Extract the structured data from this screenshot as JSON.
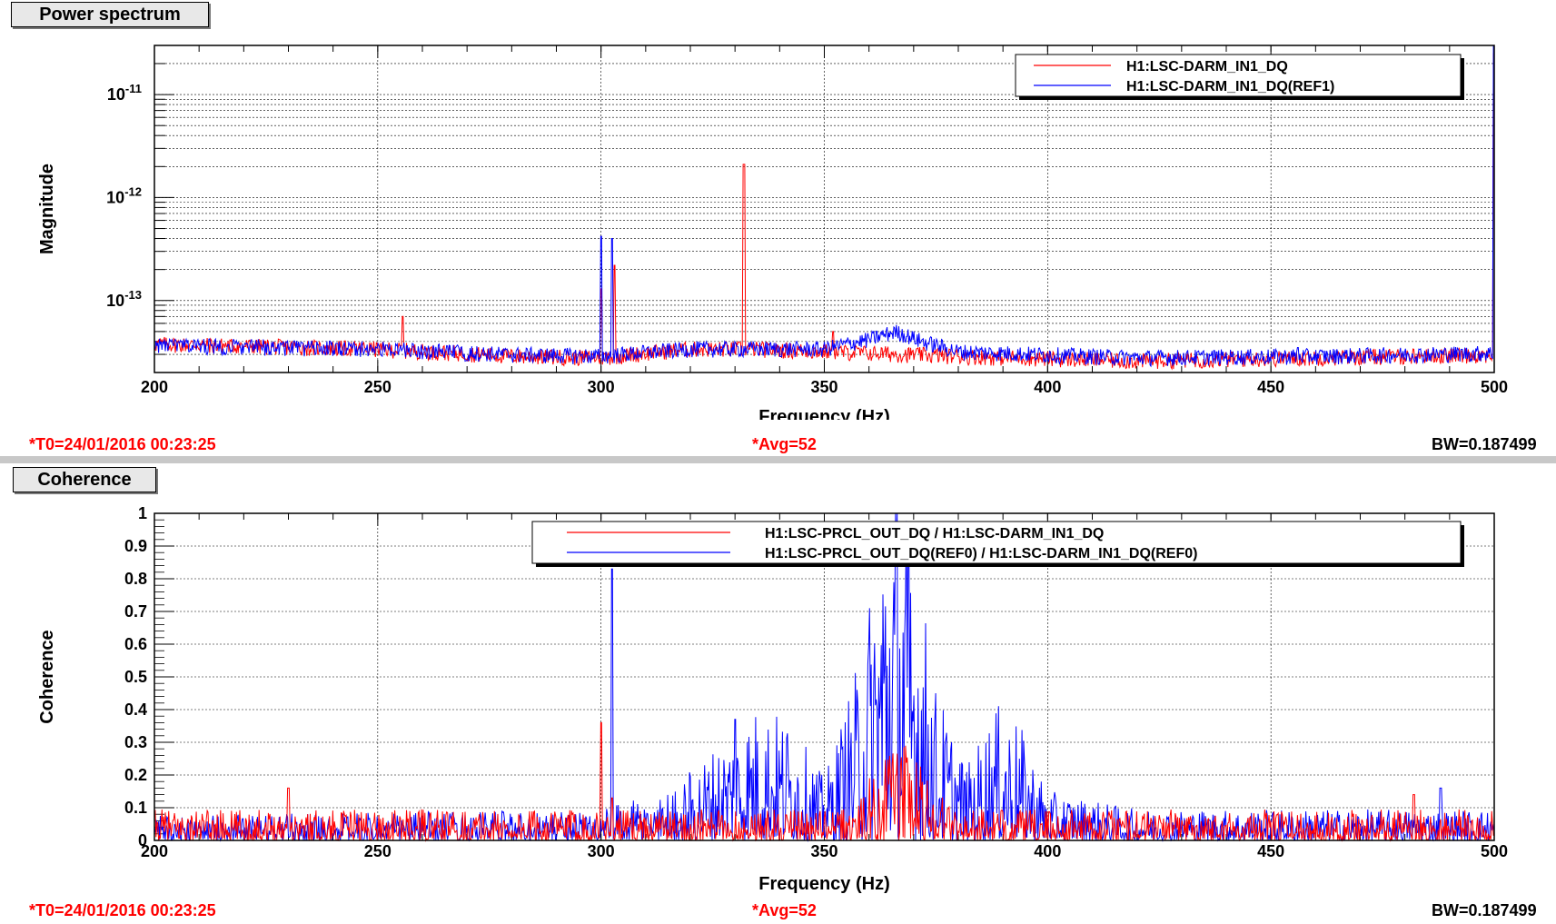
{
  "panels": [
    {
      "tab_label": "Power spectrum",
      "t0": "*T0=24/01/2016 00:23:25",
      "avg": "*Avg=52",
      "bw": "BW=0.187499"
    },
    {
      "tab_label": "Coherence",
      "t0": "*T0=24/01/2016 00:23:25",
      "avg": "*Avg=52",
      "bw": "BW=0.187499"
    }
  ],
  "colors": {
    "red": "#ff0000",
    "blue": "#0000ff",
    "grid": "#000000"
  },
  "chart_data": [
    {
      "type": "line",
      "scale_y": "log",
      "xlabel": "Frequency (Hz)",
      "ylabel": "Magnitude",
      "xlim": [
        200,
        500
      ],
      "ylim": [
        2e-14,
        3e-11
      ],
      "x_ticks": [
        200,
        250,
        300,
        350,
        400,
        450,
        500
      ],
      "y_tick_labels": [
        {
          "value": 1e-11,
          "mantissa": "10",
          "exp": "-11"
        },
        {
          "value": 1e-12,
          "mantissa": "10",
          "exp": "-12"
        },
        {
          "value": 1e-13,
          "mantissa": "10",
          "exp": "-13"
        }
      ],
      "grid": true,
      "legend_position": "top-right",
      "series": [
        {
          "name": "H1:LSC-DARM_IN1_DQ",
          "color": "#ff0000",
          "baseline": [
            [
              200,
              3.8e-14
            ],
            [
              250,
              3.4e-14
            ],
            [
              280,
              2.9e-14
            ],
            [
              300,
              2.8e-14
            ],
            [
              320,
              3.4e-14
            ],
            [
              335,
              3.4e-14
            ],
            [
              350,
              3.2e-14
            ],
            [
              380,
              2.9e-14
            ],
            [
              420,
              2.6e-14
            ],
            [
              460,
              2.8e-14
            ],
            [
              500,
              3e-14
            ]
          ],
          "peaks": [
            [
              255.6,
              7e-14
            ],
            [
              300,
              1.3e-13
            ],
            [
              303,
              2.2e-13
            ],
            [
              332,
              2.1e-12
            ],
            [
              352,
              5e-14
            ],
            [
              500,
              2.5e-11
            ]
          ]
        },
        {
          "name": "H1:LSC-DARM_IN1_DQ(REF1)",
          "color": "#0000ff",
          "baseline": [
            [
              200,
              3.7e-14
            ],
            [
              250,
              3.4e-14
            ],
            [
              280,
              3e-14
            ],
            [
              300,
              2.9e-14
            ],
            [
              320,
              3.4e-14
            ],
            [
              335,
              3.4e-14
            ],
            [
              350,
              3.4e-14
            ],
            [
              360,
              4.2e-14
            ],
            [
              366,
              5e-14
            ],
            [
              372,
              4e-14
            ],
            [
              380,
              3.2e-14
            ],
            [
              420,
              2.8e-14
            ],
            [
              460,
              2.9e-14
            ],
            [
              500,
              3.1e-14
            ]
          ],
          "peaks": [
            [
              300,
              4.2e-13
            ],
            [
              302.5,
              4e-13
            ],
            [
              456,
              3.5e-14
            ],
            [
              500,
              3e-11
            ]
          ]
        }
      ]
    },
    {
      "type": "line",
      "scale_y": "linear",
      "xlabel": "Frequency (Hz)",
      "ylabel": "Coherence",
      "xlim": [
        200,
        500
      ],
      "ylim": [
        0,
        1
      ],
      "x_ticks": [
        200,
        250,
        300,
        350,
        400,
        450,
        500
      ],
      "y_ticks": [
        0,
        0.1,
        0.2,
        0.3,
        0.4,
        0.5,
        0.6,
        0.7,
        0.8,
        0.9,
        1
      ],
      "y_tick_labels": [
        "0",
        "0.1",
        "0.2",
        "0.3",
        "0.4",
        "0.5",
        "0.6",
        "0.7",
        "0.8",
        "0.9",
        "1"
      ],
      "grid": true,
      "legend_position": "top-right",
      "series": [
        {
          "name": "H1:LSC-PRCL_OUT_DQ / H1:LSC-DARM_IN1_DQ",
          "color": "#ff0000",
          "envelope": [
            [
              200,
              0.05
            ],
            [
              300,
              0.05
            ],
            [
              355,
              0.05
            ],
            [
              362,
              0.12
            ],
            [
              366,
              0.18
            ],
            [
              372,
              0.12
            ],
            [
              380,
              0.05
            ],
            [
              500,
              0.05
            ]
          ],
          "peaks": [
            [
              230,
              0.16
            ],
            [
              300,
              0.36
            ],
            [
              302.5,
              0.13
            ],
            [
              366,
              0.2
            ],
            [
              482,
              0.14
            ]
          ]
        },
        {
          "name": "H1:LSC-PRCL_OUT_DQ(REF0) / H1:LSC-DARM_IN1_DQ(REF0)",
          "color": "#0000ff",
          "envelope": [
            [
              200,
              0.04
            ],
            [
              300,
              0.05
            ],
            [
              315,
              0.08
            ],
            [
              325,
              0.15
            ],
            [
              335,
              0.22
            ],
            [
              342,
              0.2
            ],
            [
              350,
              0.1
            ],
            [
              358,
              0.3
            ],
            [
              363,
              0.55
            ],
            [
              366,
              0.65
            ],
            [
              370,
              0.5
            ],
            [
              375,
              0.25
            ],
            [
              382,
              0.12
            ],
            [
              388,
              0.22
            ],
            [
              393,
              0.2
            ],
            [
              400,
              0.08
            ],
            [
              420,
              0.05
            ],
            [
              500,
              0.05
            ]
          ],
          "peaks": [
            [
              302.5,
              0.83
            ],
            [
              366,
              0.71
            ],
            [
              330,
              0.37
            ],
            [
              488,
              0.16
            ]
          ]
        }
      ]
    }
  ]
}
